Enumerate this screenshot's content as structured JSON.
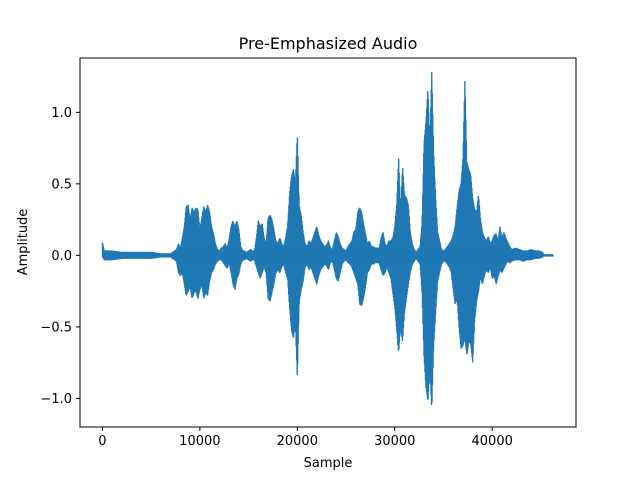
{
  "chart_data": {
    "type": "line",
    "title": "Pre-Emphasized Audio",
    "xlabel": "Sample",
    "ylabel": "Amplitude",
    "xlim": [
      -2300,
      48600
    ],
    "ylim": [
      -1.2,
      1.38
    ],
    "x_ticks": [
      0,
      10000,
      20000,
      30000,
      40000
    ],
    "x_tick_labels": [
      "0",
      "10000",
      "20000",
      "30000",
      "40000"
    ],
    "y_ticks": [
      -1.0,
      -0.5,
      0.0,
      0.5,
      1.0
    ],
    "y_tick_labels": [
      "−1.0",
      "−0.5",
      "0.0",
      "0.5",
      "1.0"
    ],
    "grid": false,
    "series": [
      {
        "color": "#1f77b4",
        "x": [
          0,
          200,
          400,
          1000,
          2000,
          3000,
          4000,
          5000,
          6000,
          7000,
          7600,
          7800,
          8000,
          8200,
          8400,
          8600,
          8800,
          9000,
          9200,
          9400,
          9600,
          9800,
          10000,
          10200,
          10400,
          10600,
          10800,
          11000,
          11200,
          11400,
          11600,
          11800,
          12000,
          12200,
          12400,
          12600,
          12800,
          13000,
          13200,
          13400,
          13600,
          13800,
          14000,
          14200,
          14400,
          14600,
          14800,
          15000,
          15200,
          15400,
          15600,
          15800,
          16000,
          16200,
          16400,
          16600,
          16800,
          17000,
          17200,
          17400,
          17600,
          17800,
          18000,
          18200,
          18400,
          18600,
          18800,
          19000,
          19200,
          19400,
          19600,
          19800,
          20000,
          20200,
          20400,
          20600,
          20800,
          21000,
          21200,
          21400,
          21600,
          21800,
          22000,
          22200,
          22400,
          22600,
          22800,
          23000,
          23200,
          23400,
          23600,
          23800,
          24000,
          24200,
          24400,
          24600,
          24800,
          25000,
          25200,
          25400,
          25600,
          25800,
          26000,
          26200,
          26400,
          26600,
          26800,
          27000,
          27200,
          27400,
          27600,
          27800,
          28000,
          28200,
          28400,
          28600,
          28800,
          29000,
          29200,
          29400,
          29600,
          29800,
          30000,
          30200,
          30400,
          30600,
          30800,
          31000,
          31200,
          31400,
          31600,
          31800,
          32000,
          32200,
          32400,
          32600,
          32800,
          33000,
          33200,
          33400,
          33600,
          33800,
          34000,
          34200,
          34400,
          34600,
          34800,
          35000,
          35200,
          35400,
          35600,
          35800,
          36000,
          36200,
          36400,
          36600,
          36800,
          37000,
          37200,
          37400,
          37600,
          37800,
          38000,
          38200,
          38400,
          38600,
          38800,
          39000,
          39200,
          39400,
          39600,
          39800,
          40000,
          40200,
          40400,
          40600,
          40800,
          41000,
          41200,
          41400,
          41600,
          41800,
          42000,
          42400,
          42800,
          43200,
          43600,
          44000,
          44400,
          44800,
          45200,
          45600,
          46000,
          46300
        ],
        "y_max": [
          0.09,
          0.03,
          0.03,
          0.03,
          0.02,
          0.02,
          0.02,
          0.02,
          0.01,
          0.01,
          0.04,
          0.08,
          0.05,
          0.12,
          0.2,
          0.34,
          0.35,
          0.25,
          0.33,
          0.3,
          0.33,
          0.32,
          0.18,
          0.26,
          0.34,
          0.3,
          0.35,
          0.3,
          0.2,
          0.15,
          0.08,
          0.04,
          0.03,
          0.05,
          0.06,
          0.08,
          0.05,
          0.11,
          0.2,
          0.24,
          0.2,
          0.24,
          0.18,
          0.06,
          0.03,
          0.03,
          0.02,
          0.03,
          0.04,
          0.03,
          0.03,
          0.12,
          0.24,
          0.2,
          0.22,
          0.12,
          0.08,
          0.26,
          0.28,
          0.25,
          0.18,
          0.1,
          0.08,
          0.12,
          0.08,
          0.06,
          0.12,
          0.2,
          0.42,
          0.55,
          0.6,
          0.5,
          0.85,
          0.34,
          0.28,
          0.16,
          0.08,
          0.06,
          0.1,
          0.08,
          0.12,
          0.16,
          0.2,
          0.14,
          0.1,
          0.08,
          0.06,
          0.07,
          0.1,
          0.05,
          0.04,
          0.1,
          0.16,
          0.13,
          0.08,
          0.05,
          0.04,
          0.03,
          0.06,
          0.08,
          0.1,
          0.16,
          0.18,
          0.3,
          0.33,
          0.3,
          0.22,
          0.15,
          0.08,
          0.1,
          0.06,
          0.06,
          0.05,
          0.05,
          0.05,
          0.12,
          0.16,
          0.08,
          0.06,
          0.1,
          0.1,
          0.12,
          0.2,
          0.35,
          0.68,
          0.3,
          0.62,
          0.42,
          0.4,
          0.35,
          0.16,
          0.08,
          0.04,
          0.02,
          0.04,
          0.06,
          0.22,
          0.78,
          0.93,
          1.16,
          0.8,
          1.28,
          0.7,
          0.4,
          0.16,
          0.1,
          0.04,
          0.03,
          0.04,
          0.06,
          0.08,
          0.1,
          0.14,
          0.2,
          0.34,
          0.45,
          0.5,
          0.68,
          1.23,
          0.65,
          0.6,
          0.56,
          0.4,
          0.32,
          0.3,
          0.42,
          0.25,
          0.16,
          0.12,
          0.1,
          0.13,
          0.08,
          0.1,
          0.14,
          0.15,
          0.1,
          0.2,
          0.12,
          0.16,
          0.12,
          0.09,
          0.06,
          0.04,
          0.05,
          0.04,
          0.03,
          0.03,
          0.04,
          0.03,
          0.03,
          0.02,
          0.02,
          0.01
        ],
        "y_min": [
          -0.01,
          -0.03,
          -0.03,
          -0.03,
          -0.02,
          -0.02,
          -0.02,
          -0.02,
          -0.01,
          -0.01,
          -0.04,
          -0.12,
          -0.14,
          -0.12,
          -0.2,
          -0.28,
          -0.25,
          -0.22,
          -0.3,
          -0.26,
          -0.25,
          -0.3,
          -0.24,
          -0.2,
          -0.3,
          -0.26,
          -0.28,
          -0.18,
          -0.12,
          -0.1,
          -0.06,
          -0.04,
          -0.03,
          -0.03,
          -0.05,
          -0.07,
          -0.09,
          -0.05,
          -0.12,
          -0.2,
          -0.24,
          -0.16,
          -0.13,
          -0.06,
          -0.03,
          -0.03,
          -0.02,
          -0.03,
          -0.04,
          -0.03,
          -0.03,
          -0.08,
          -0.12,
          -0.16,
          -0.12,
          -0.08,
          -0.12,
          -0.3,
          -0.32,
          -0.26,
          -0.2,
          -0.12,
          -0.1,
          -0.12,
          -0.08,
          -0.06,
          -0.12,
          -0.16,
          -0.36,
          -0.52,
          -0.58,
          -0.47,
          -0.86,
          -0.32,
          -0.24,
          -0.18,
          -0.08,
          -0.06,
          -0.1,
          -0.08,
          -0.12,
          -0.16,
          -0.2,
          -0.14,
          -0.1,
          -0.08,
          -0.06,
          -0.07,
          -0.1,
          -0.05,
          -0.04,
          -0.1,
          -0.16,
          -0.18,
          -0.12,
          -0.06,
          -0.04,
          -0.03,
          -0.05,
          -0.06,
          -0.08,
          -0.12,
          -0.16,
          -0.2,
          -0.34,
          -0.35,
          -0.3,
          -0.22,
          -0.12,
          -0.1,
          -0.06,
          -0.06,
          -0.05,
          -0.05,
          -0.05,
          -0.1,
          -0.14,
          -0.12,
          -0.08,
          -0.12,
          -0.16,
          -0.26,
          -0.36,
          -0.52,
          -0.68,
          -0.5,
          -0.6,
          -0.4,
          -0.3,
          -0.2,
          -0.12,
          -0.06,
          -0.04,
          -0.02,
          -0.04,
          -0.06,
          -0.26,
          -0.7,
          -0.92,
          -1.02,
          -0.8,
          -1.08,
          -0.62,
          -0.4,
          -0.18,
          -0.12,
          -0.06,
          -0.04,
          -0.04,
          -0.06,
          -0.08,
          -0.12,
          -0.24,
          -0.34,
          -0.3,
          -0.5,
          -0.65,
          -0.63,
          -0.58,
          -0.7,
          -0.6,
          -0.62,
          -0.75,
          -0.46,
          -0.32,
          -0.25,
          -0.15,
          -0.2,
          -0.14,
          -0.1,
          -0.12,
          -0.08,
          -0.16,
          -0.14,
          -0.2,
          -0.15,
          -0.1,
          -0.12,
          -0.09,
          -0.06,
          -0.04,
          -0.05,
          -0.04,
          -0.03,
          -0.03,
          -0.04,
          -0.03,
          -0.03,
          -0.02,
          -0.02,
          -0.01
        ]
      }
    ]
  }
}
